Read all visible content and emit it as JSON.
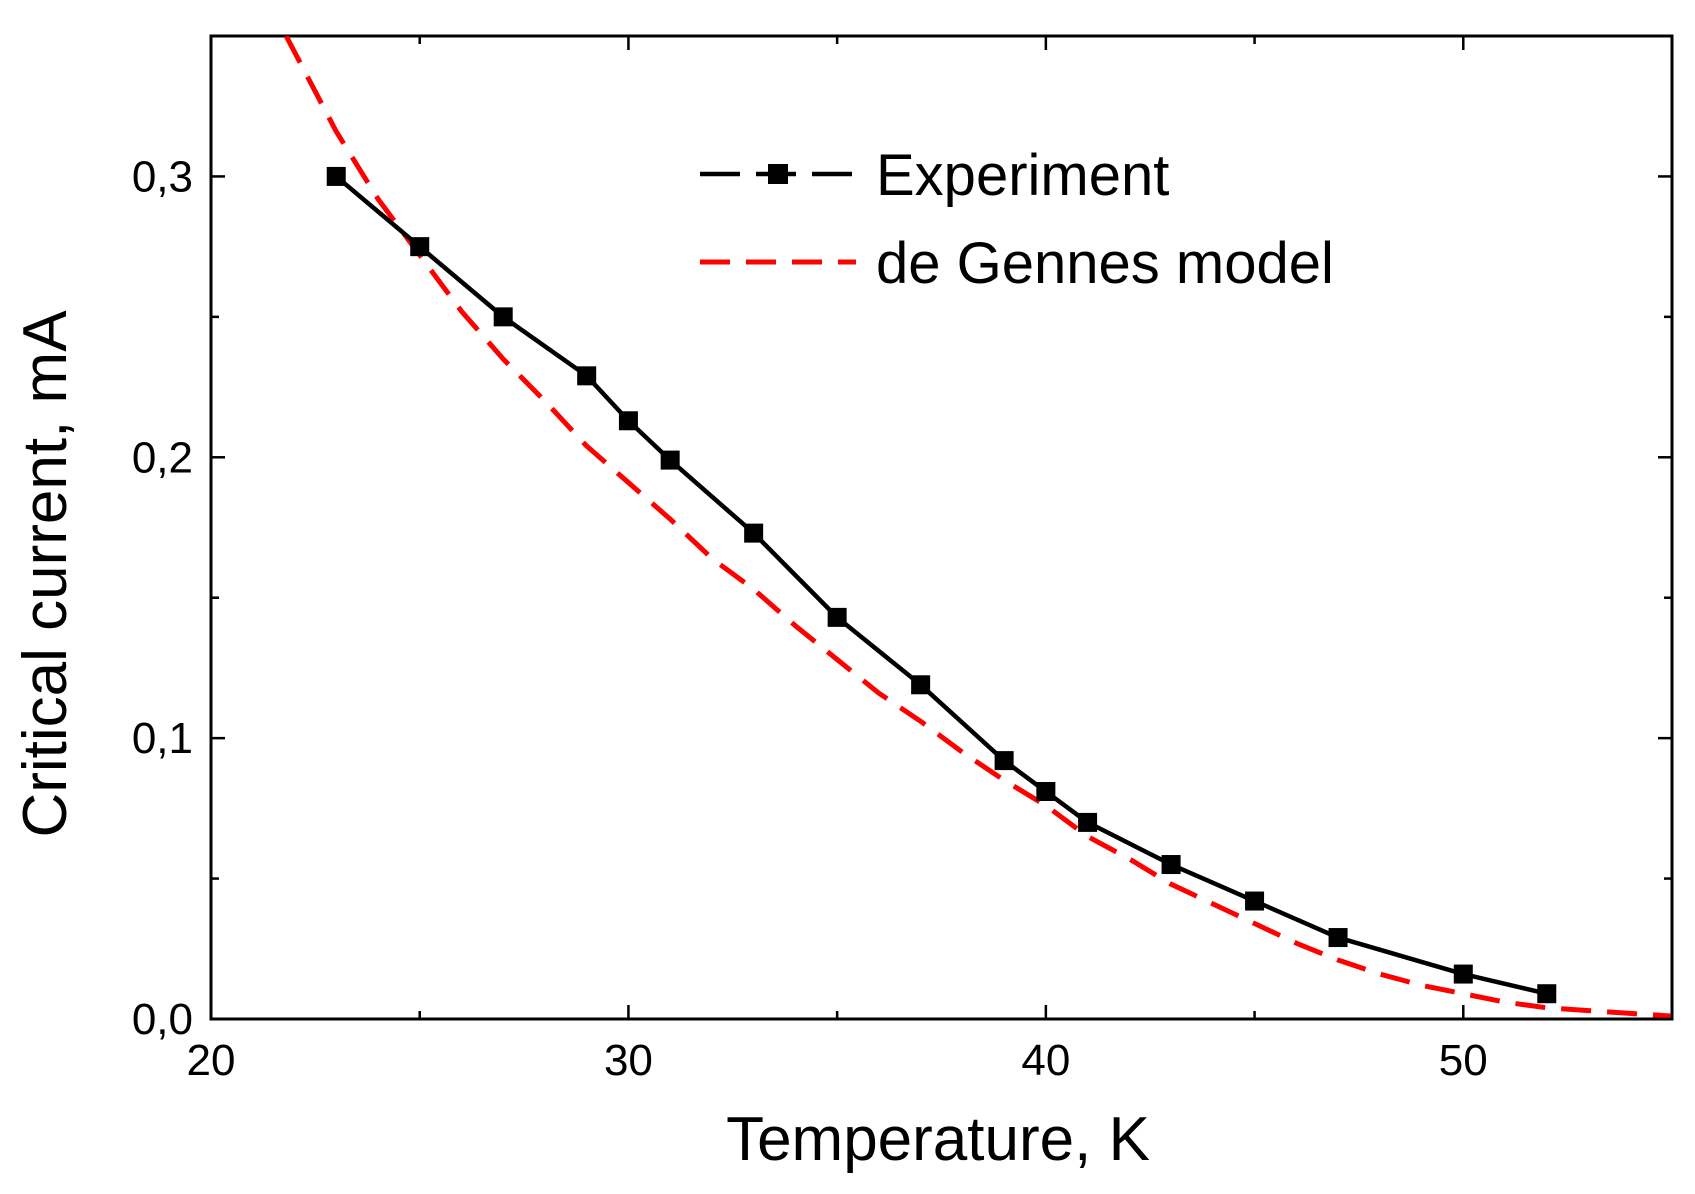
{
  "chart_data": {
    "type": "line",
    "title": "",
    "xlabel": "Temperature, K",
    "ylabel": "Critical current, mA",
    "xlim": [
      20,
      55
    ],
    "ylim": [
      0,
      0.35
    ],
    "x_ticks": [
      20,
      30,
      40,
      50
    ],
    "x_tick_labels": [
      "20",
      "30",
      "40",
      "50"
    ],
    "y_ticks": [
      0.0,
      0.1,
      0.2,
      0.3
    ],
    "y_tick_labels": [
      "0,0",
      "0,1",
      "0,2",
      "0,3"
    ],
    "grid": false,
    "legend_position": "top-right",
    "series": [
      {
        "name": "Experiment",
        "style": "line-with-square-markers",
        "color": "#000000",
        "x": [
          23,
          25,
          27,
          29,
          30,
          31,
          33,
          35,
          37,
          39,
          40,
          41,
          43,
          45,
          47,
          50,
          52
        ],
        "y": [
          0.3,
          0.275,
          0.25,
          0.229,
          0.213,
          0.199,
          0.173,
          0.143,
          0.119,
          0.092,
          0.081,
          0.07,
          0.055,
          0.042,
          0.029,
          0.016,
          0.009
        ]
      },
      {
        "name": "de Gennes model",
        "style": "dashed",
        "color": "#ff0000",
        "x": [
          21.8,
          23,
          24,
          25,
          26,
          27,
          28,
          29,
          30,
          31,
          32,
          33,
          34,
          35,
          36,
          37,
          38,
          39,
          40,
          41,
          42,
          43,
          44,
          45,
          46,
          47,
          48,
          49,
          50,
          51,
          52,
          53,
          54,
          55
        ],
        "y": [
          0.35,
          0.316,
          0.292,
          0.272,
          0.252,
          0.235,
          0.22,
          0.204,
          0.191,
          0.178,
          0.164,
          0.153,
          0.14,
          0.128,
          0.116,
          0.106,
          0.095,
          0.085,
          0.076,
          0.065,
          0.057,
          0.048,
          0.041,
          0.034,
          0.027,
          0.021,
          0.016,
          0.012,
          0.009,
          0.006,
          0.004,
          0.003,
          0.002,
          0.001
        ]
      }
    ]
  }
}
